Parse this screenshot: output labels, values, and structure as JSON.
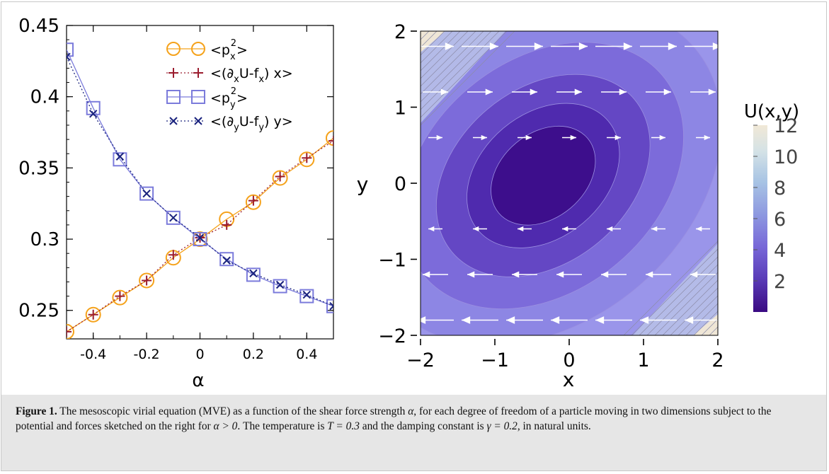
{
  "left_chart": {
    "type": "line",
    "xlabel": "α",
    "xlim": [
      -0.5,
      0.5
    ],
    "ylim": [
      0.23,
      0.45
    ],
    "x_ticks": [
      "-0.4",
      "-0.2",
      "0",
      "0.2",
      "0.4"
    ],
    "x_tick_values": [
      -0.4,
      -0.2,
      0,
      0.2,
      0.4
    ],
    "y_ticks": [
      "0.25",
      "0.3",
      "0.35",
      "0.4",
      "0.45"
    ],
    "y_tick_values": [
      0.25,
      0.3,
      0.35,
      0.4,
      0.45
    ],
    "x": [
      -0.5,
      -0.4,
      -0.3,
      -0.2,
      -0.1,
      0,
      0.1,
      0.2,
      0.3,
      0.4,
      0.5
    ],
    "series": [
      {
        "name": "<p_x^2>",
        "color": "#f5a21b",
        "marker": "circle",
        "values": [
          0.235,
          0.247,
          0.259,
          0.271,
          0.287,
          0.3,
          0.314,
          0.326,
          0.343,
          0.356,
          0.371
        ]
      },
      {
        "name": "<(∂_x U - f_x) x>",
        "color": "#9b1c2e",
        "marker": "plus",
        "values": [
          0.235,
          0.247,
          0.26,
          0.271,
          0.289,
          0.301,
          0.31,
          0.327,
          0.344,
          0.357,
          0.369
        ]
      },
      {
        "name": "<p_y^2>",
        "color": "#7b7bdb",
        "marker": "square",
        "values": [
          0.433,
          0.392,
          0.356,
          0.332,
          0.315,
          0.3,
          0.286,
          0.275,
          0.267,
          0.26,
          0.253
        ]
      },
      {
        "name": "<(∂_y U - f_y) y>",
        "color": "#1a237e",
        "marker": "cross",
        "values": [
          0.428,
          0.388,
          0.358,
          0.332,
          0.315,
          0.301,
          0.285,
          0.276,
          0.268,
          0.261,
          0.253
        ]
      }
    ]
  },
  "right_chart": {
    "type": "heatmap",
    "xlabel": "x",
    "ylabel": "y",
    "xlim": [
      -2,
      2
    ],
    "ylim": [
      -2,
      2
    ],
    "x_ticks": [
      "−2",
      "−1",
      "0",
      "1",
      "2"
    ],
    "x_tick_values": [
      -2,
      -1,
      0,
      1,
      2
    ],
    "y_ticks": [
      "−2",
      "−1",
      "0",
      "1",
      "2"
    ],
    "y_tick_values": [
      -2,
      -1,
      0,
      1,
      2
    ],
    "contour_levels": [
      2,
      4,
      6,
      8,
      10
    ],
    "arrow_rows_y": [
      1.8,
      1.2,
      0.6,
      0.0,
      -0.6,
      -1.2,
      -1.8
    ],
    "arrow_cols_x": [
      -1.8,
      -1.2,
      -0.6,
      0.0,
      0.6,
      1.2,
      1.8
    ],
    "colorbar": {
      "title": "U(x,y)",
      "ticks": [
        "12",
        "10",
        "8",
        "6",
        "4",
        "2"
      ],
      "tick_values": [
        12,
        10,
        8,
        6,
        4,
        2
      ],
      "range": [
        0,
        12
      ]
    }
  },
  "caption": {
    "label": "Figure 1.",
    "part1": " The mesoscopic virial equation  (MVE) as a function of the shear force strength ",
    "alpha": "α",
    "part2": ", for each degree of freedom of a particle moving in two dimensions subject to the potential and forces sketched on the right for ",
    "cond": "α > 0",
    "part3": ". The temperature is ",
    "temp": "T = 0.3",
    "part4": " and the damping constant is ",
    "damp": "γ = 0.2",
    "part5": ", in natural units."
  }
}
